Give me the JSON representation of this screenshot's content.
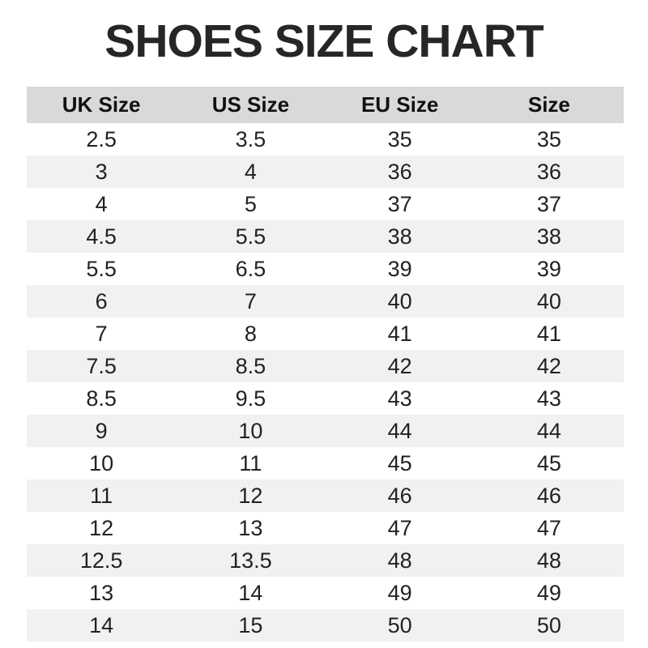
{
  "title": "SHOES SIZE CHART",
  "colors": {
    "header_bg": "#d9d9d9",
    "stripe_bg": "#f1f1f1",
    "title_text": "#262626",
    "body_text": "#222222"
  },
  "chart_data": {
    "type": "table",
    "title": "SHOES SIZE CHART",
    "columns": [
      "UK Size",
      "US Size",
      "EU Size",
      "Size"
    ],
    "rows": [
      [
        "2.5",
        "3.5",
        "35",
        "35"
      ],
      [
        "3",
        "4",
        "36",
        "36"
      ],
      [
        "4",
        "5",
        "37",
        "37"
      ],
      [
        "4.5",
        "5.5",
        "38",
        "38"
      ],
      [
        "5.5",
        "6.5",
        "39",
        "39"
      ],
      [
        "6",
        "7",
        "40",
        "40"
      ],
      [
        "7",
        "8",
        "41",
        "41"
      ],
      [
        "7.5",
        "8.5",
        "42",
        "42"
      ],
      [
        "8.5",
        "9.5",
        "43",
        "43"
      ],
      [
        "9",
        "10",
        "44",
        "44"
      ],
      [
        "10",
        "11",
        "45",
        "45"
      ],
      [
        "11",
        "12",
        "46",
        "46"
      ],
      [
        "12",
        "13",
        "47",
        "47"
      ],
      [
        "12.5",
        "13.5",
        "48",
        "48"
      ],
      [
        "13",
        "14",
        "49",
        "49"
      ],
      [
        "14",
        "15",
        "50",
        "50"
      ]
    ],
    "layout": {
      "columns_equal_width": true,
      "striped_rows": true,
      "header_background": "#d9d9d9",
      "stripe_background": "#f1f1f1"
    }
  }
}
